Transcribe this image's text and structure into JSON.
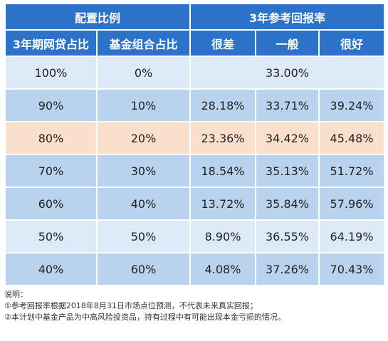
{
  "header": {
    "group_ratio": "配置比例",
    "group_return": "3年参考回报率",
    "col_loan": "3年期网贷占比",
    "col_fund": "基金组合占比",
    "col_bad": "很差",
    "col_normal": "一般",
    "col_good": "很好"
  },
  "rows": [
    {
      "loan": "100%",
      "fund": "0%",
      "merged": "33.00%"
    },
    {
      "loan": "90%",
      "fund": "10%",
      "bad": "28.18%",
      "normal": "33.71%",
      "good": "39.24%"
    },
    {
      "loan": "80%",
      "fund": "20%",
      "bad": "23.36%",
      "normal": "34.42%",
      "good": "45.48%"
    },
    {
      "loan": "70%",
      "fund": "30%",
      "bad": "18.54%",
      "normal": "35.13%",
      "good": "51.72%"
    },
    {
      "loan": "60%",
      "fund": "40%",
      "bad": "13.72%",
      "normal": "35.84%",
      "good": "57.96%"
    },
    {
      "loan": "50%",
      "fund": "50%",
      "bad": "8.90%",
      "normal": "36.55%",
      "good": "64.19%"
    },
    {
      "loan": "40%",
      "fund": "60%",
      "bad": "4.08%",
      "normal": "37.26%",
      "good": "70.43%"
    }
  ],
  "notes": {
    "title": "说明：",
    "line1": "①参考回报率根据2018年8月31日市场点位预测，不代表未来真实回报；",
    "line2": "②本计划中基金产品为中高风险投资品，持有过程中有可能出现本金亏损的情况。"
  },
  "colors": {
    "header_bg": "#2b72c9",
    "row_light": "#dce9f6",
    "row_blue": "#b9d3ee",
    "row_highlight": "#fadfcc"
  }
}
